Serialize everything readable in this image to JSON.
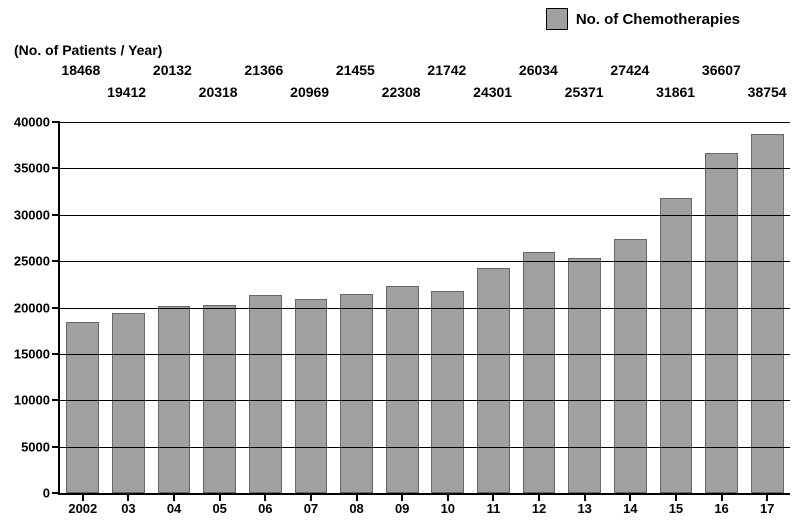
{
  "legend": {
    "label": "No. of Chemotherapies",
    "swatch_color": "#a0a0a0"
  },
  "chart": {
    "type": "bar",
    "ylabel": "(No. of Patients / Year)",
    "categories": [
      "2002",
      "03",
      "04",
      "05",
      "06",
      "07",
      "08",
      "09",
      "10",
      "11",
      "12",
      "13",
      "14",
      "15",
      "16",
      "17"
    ],
    "values": [
      18468,
      19412,
      20132,
      20318,
      21366,
      20969,
      21455,
      22308,
      21742,
      24301,
      26034,
      25371,
      27424,
      31861,
      36607,
      38754
    ],
    "bar_color": "#a0a0a0",
    "bar_border_color": "#666666",
    "background_color": "#ffffff",
    "grid_color": "#000000",
    "ylim": [
      0,
      40000
    ],
    "ytick_step": 5000,
    "bar_width": 0.72,
    "label_fontsize": 14,
    "tick_fontsize": 13,
    "label_row_offsets": [
      0,
      22
    ]
  }
}
